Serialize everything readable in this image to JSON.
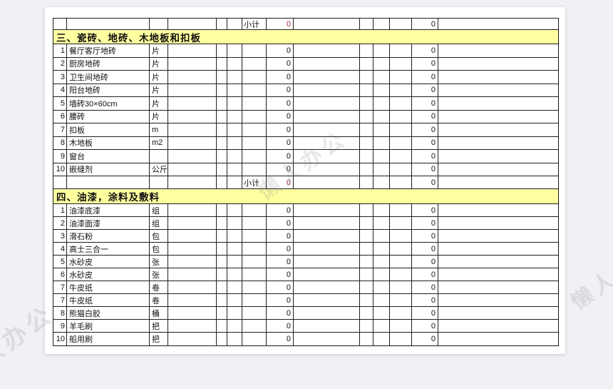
{
  "watermarks": {
    "center": "懒人办公",
    "bottom_left": "懒人办公",
    "right": "懒人办公"
  },
  "colors": {
    "section_header_bg": "#ffffa0",
    "subtotal_value_red": "#a13535",
    "grid_line": "#1f1f1f",
    "page_bg": "#ffffff",
    "canvas_bg": "#f0f1f4"
  },
  "table": {
    "rows": [
      {
        "type": "subtotal",
        "label": "小计",
        "value_left": "0",
        "value_right": "0"
      },
      {
        "type": "section",
        "title": "三、瓷砖、地砖、木地板和扣板"
      },
      {
        "type": "item",
        "no": "1",
        "name": "餐厅客厅地砖",
        "unit": "片",
        "value_left": "0",
        "value_right": "0"
      },
      {
        "type": "item",
        "no": "2",
        "name": "厨房地砖",
        "unit": "片",
        "value_left": "0",
        "value_right": "0"
      },
      {
        "type": "item",
        "no": "3",
        "name": "卫生间地砖",
        "unit": "片",
        "value_left": "0",
        "value_right": "0"
      },
      {
        "type": "item",
        "no": "4",
        "name": "阳台地砖",
        "unit": "片",
        "value_left": "0",
        "value_right": "0"
      },
      {
        "type": "item",
        "no": "5",
        "name": "墙砖30×60cm",
        "unit": "片",
        "value_left": "0",
        "value_right": "0"
      },
      {
        "type": "item",
        "no": "6",
        "name": "腰砖",
        "unit": "片",
        "value_left": "0",
        "value_right": "0"
      },
      {
        "type": "item",
        "no": "7",
        "name": "扣板",
        "unit": "m",
        "value_left": "0",
        "value_right": "0"
      },
      {
        "type": "item",
        "no": "8",
        "name": "木地板",
        "unit": "m2",
        "value_left": "0",
        "value_right": "0"
      },
      {
        "type": "item",
        "no": "9",
        "name": "窗台",
        "unit": "",
        "value_left": "0",
        "value_right": "0"
      },
      {
        "type": "item",
        "no": "10",
        "name": "嵌缝剂",
        "unit": "公斤",
        "value_left": "0",
        "value_right": "0"
      },
      {
        "type": "subtotal",
        "label": "小计",
        "value_left": "0",
        "value_right": "0"
      },
      {
        "type": "section",
        "title": "四、油漆，涂料及敷料"
      },
      {
        "type": "item",
        "no": "1",
        "name": "油漆底漆",
        "unit": "组",
        "value_left": "0",
        "value_right": "0"
      },
      {
        "type": "item",
        "no": "2",
        "name": "油漆面漆",
        "unit": "组",
        "value_left": "0",
        "value_right": "0"
      },
      {
        "type": "item",
        "no": "3",
        "name": "滑石粉",
        "unit": "包",
        "value_left": "0",
        "value_right": "0"
      },
      {
        "type": "item",
        "no": "4",
        "name": "高士三合一",
        "unit": "包",
        "value_left": "0",
        "value_right": "0"
      },
      {
        "type": "item",
        "no": "5",
        "name": "水砂皮",
        "unit": "张",
        "value_left": "0",
        "value_right": "0"
      },
      {
        "type": "item",
        "no": "6",
        "name": "水砂皮",
        "unit": "张",
        "value_left": "0",
        "value_right": "0"
      },
      {
        "type": "item",
        "no": "7",
        "name": "牛皮纸",
        "unit": "卷",
        "value_left": "0",
        "value_right": "0"
      },
      {
        "type": "item",
        "no": "7",
        "name": "牛皮纸",
        "unit": "卷",
        "value_left": "0",
        "value_right": "0"
      },
      {
        "type": "item",
        "no": "8",
        "name": "熊猫白胶",
        "unit": "桶",
        "value_left": "0",
        "value_right": "0"
      },
      {
        "type": "item",
        "no": "9",
        "name": "羊毛刷",
        "unit": "把",
        "value_left": "0",
        "value_right": "0"
      },
      {
        "type": "item",
        "no": "10",
        "name": "船用刷",
        "unit": "把",
        "value_left": "0",
        "value_right": "0"
      }
    ]
  }
}
